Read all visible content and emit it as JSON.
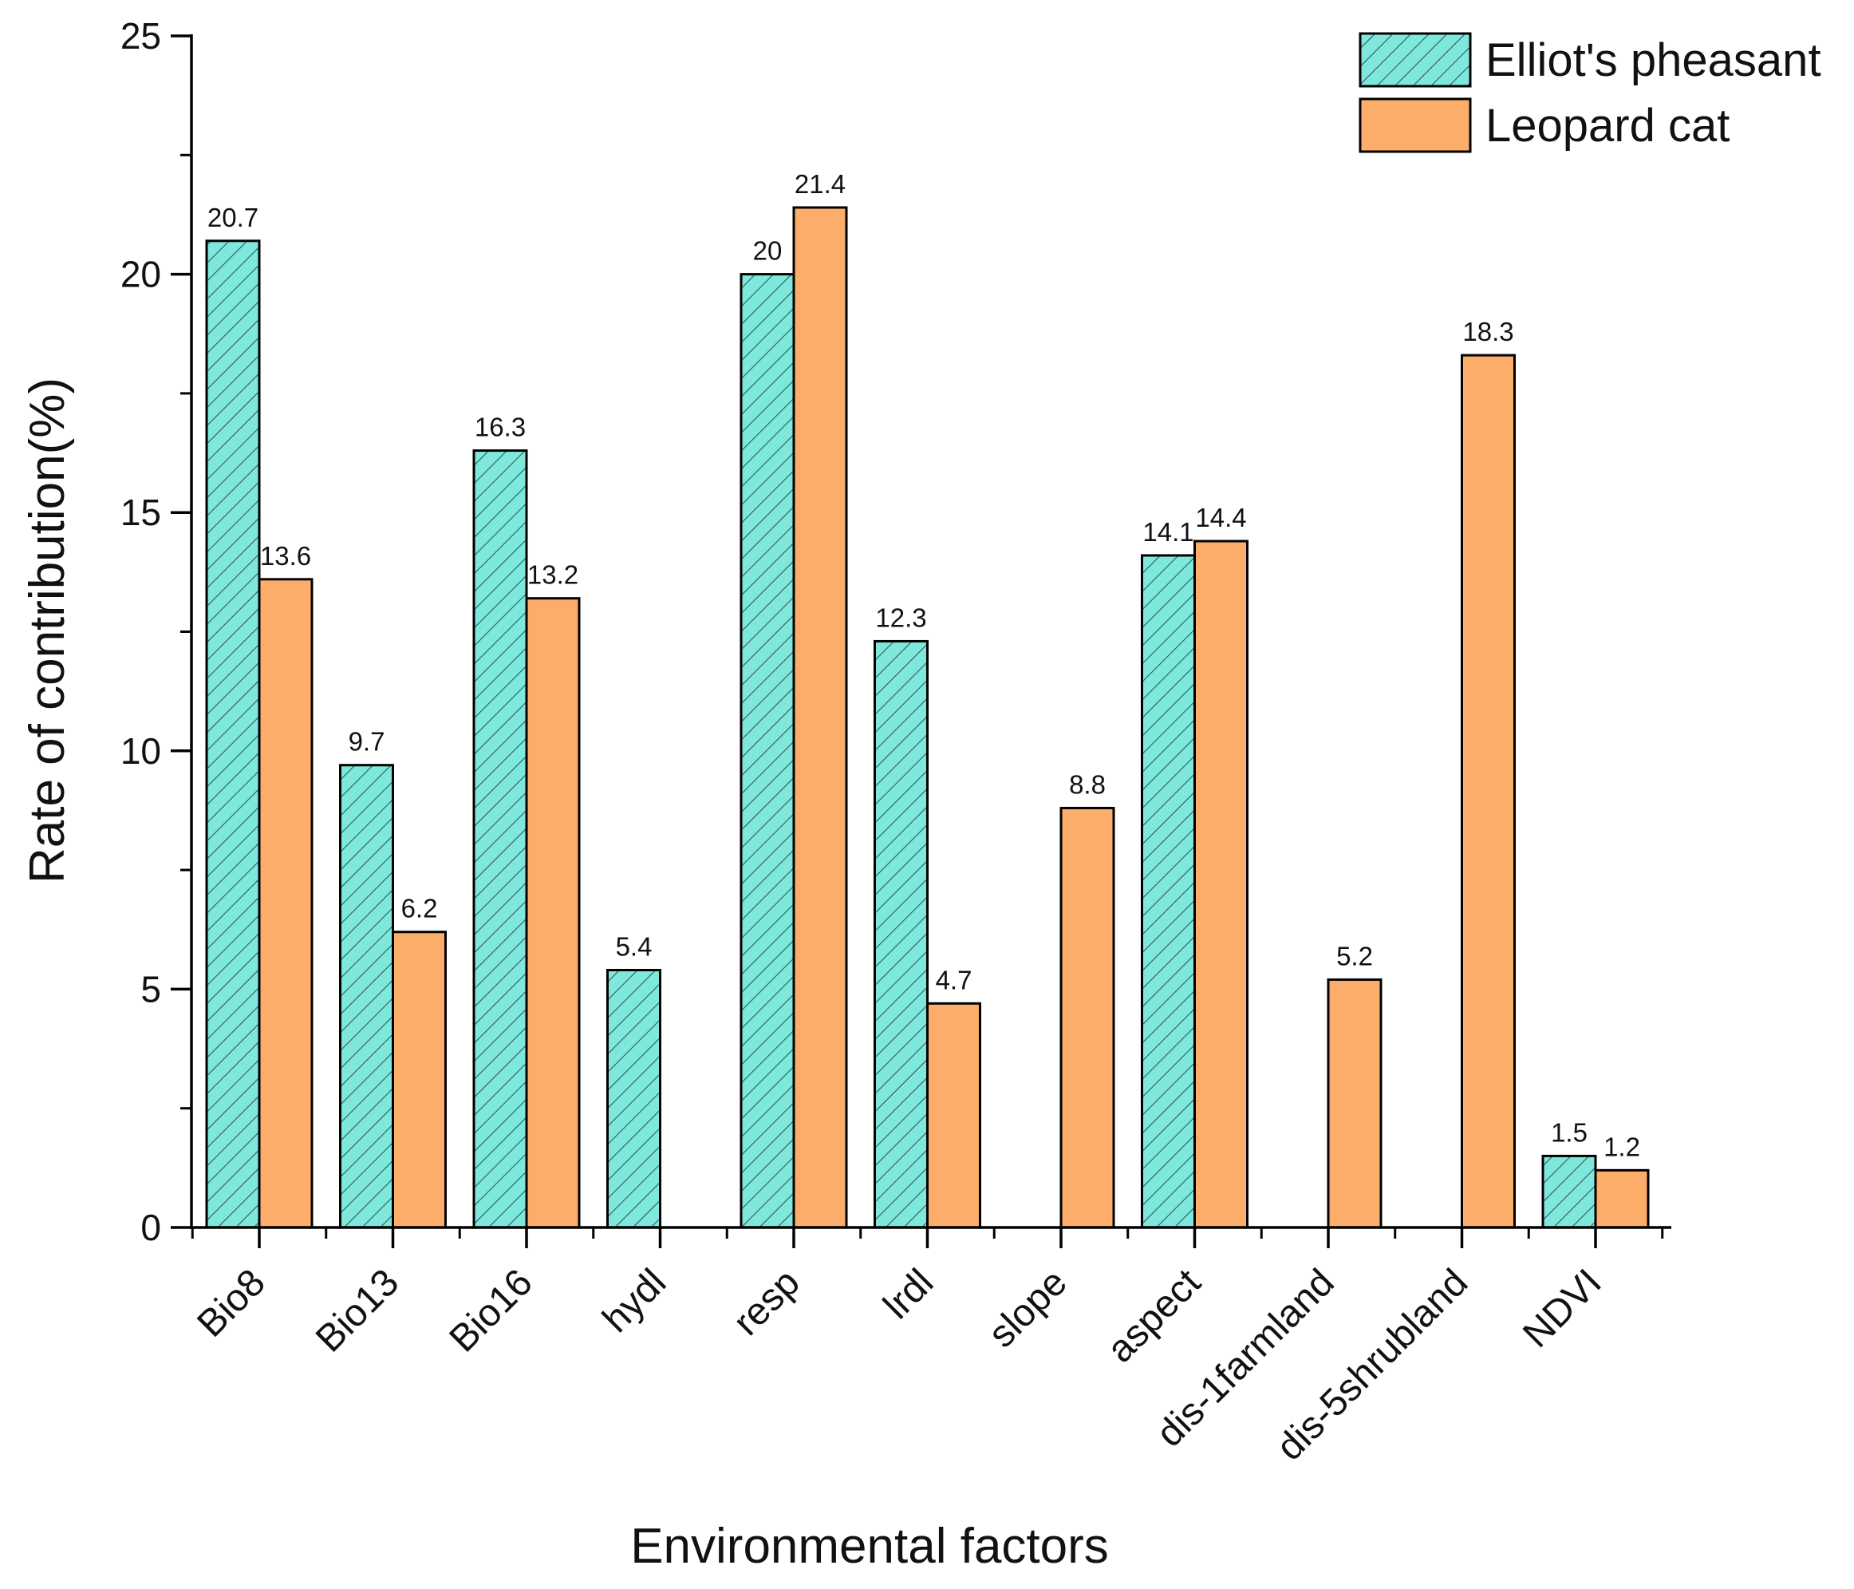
{
  "chart_data": {
    "type": "bar",
    "title": "",
    "xlabel": "Environmental factors",
    "ylabel": "Rate of contribution(%)",
    "ylim": [
      0,
      25
    ],
    "yticks": [
      0,
      5,
      10,
      15,
      20,
      25
    ],
    "grid": false,
    "legend_position": "top-right",
    "categories": [
      "Bio8",
      "Bio13",
      "Bio16",
      "hydl",
      "resp",
      "lrdl",
      "slope",
      "aspect",
      "dis-1farmland",
      "dis-5shrubland",
      "NDVI"
    ],
    "series": [
      {
        "name": "Elliot's pheasant",
        "color": "#7fe8dc",
        "pattern": "diagonal-hatch",
        "values": [
          20.7,
          9.7,
          16.3,
          5.4,
          20,
          12.3,
          null,
          14.1,
          null,
          null,
          1.5
        ],
        "labels": [
          "20.7",
          "9.7",
          "16.3",
          "5.4",
          "20",
          "12.3",
          null,
          "14.1",
          null,
          null,
          "1.5"
        ]
      },
      {
        "name": "Leopard cat",
        "color": "#fcad6a",
        "pattern": "solid",
        "values": [
          13.6,
          6.2,
          13.2,
          null,
          21.4,
          4.7,
          8.8,
          14.4,
          5.2,
          18.3,
          1.2
        ],
        "labels": [
          "13.6",
          "6.2",
          "13.2",
          null,
          "21.4",
          "4.7",
          "8.8",
          "14.4",
          "5.2",
          "18.3",
          "1.2"
        ]
      }
    ]
  }
}
